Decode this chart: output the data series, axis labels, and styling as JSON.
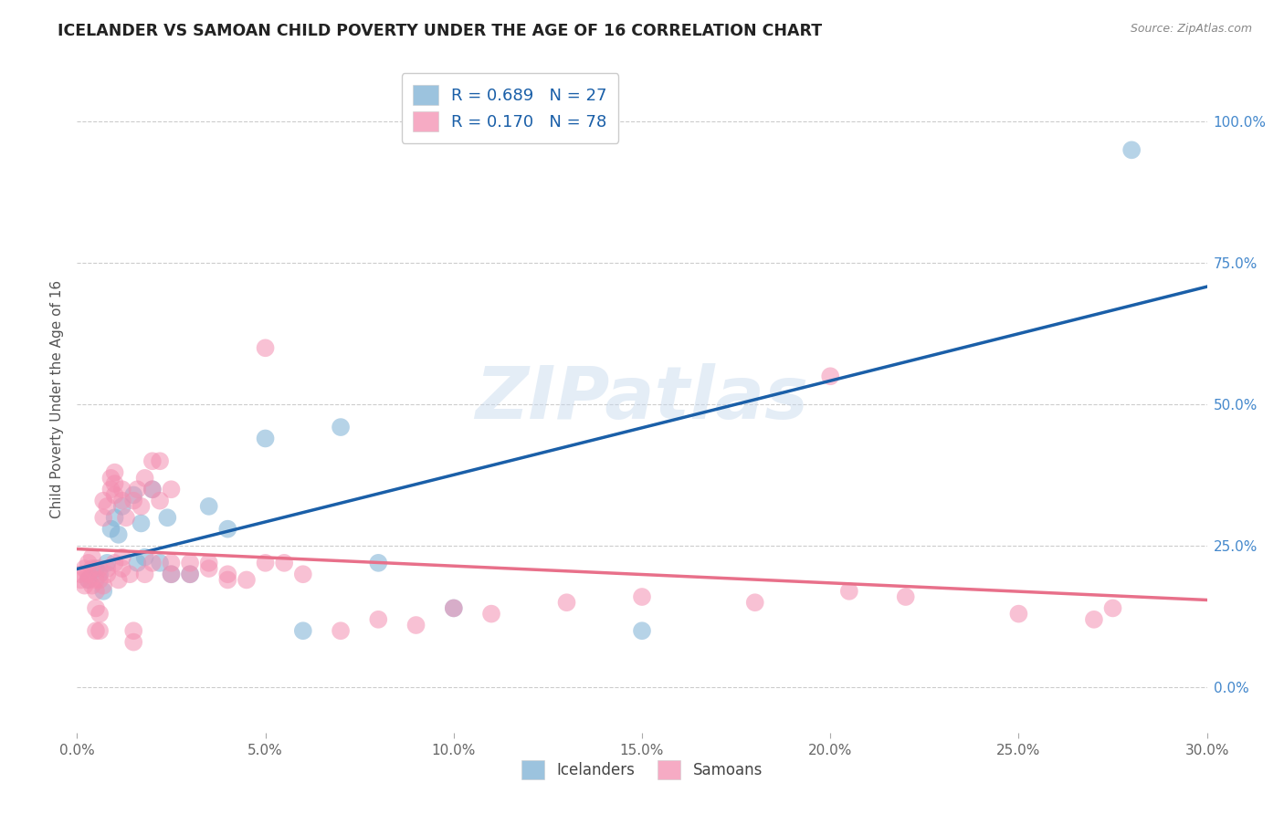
{
  "title": "ICELANDER VS SAMOAN CHILD POVERTY UNDER THE AGE OF 16 CORRELATION CHART",
  "source": "Source: ZipAtlas.com",
  "ylabel": "Child Poverty Under the Age of 16",
  "right_yticks": [
    "0.0%",
    "25.0%",
    "50.0%",
    "75.0%",
    "100.0%"
  ],
  "right_ytick_vals": [
    0.0,
    25.0,
    50.0,
    75.0,
    100.0
  ],
  "watermark": "ZIPatlas",
  "legend_label_icelanders": "Icelanders",
  "legend_label_samoans": "Samoans",
  "icelander_color": "#7bafd4",
  "samoan_color": "#f48fb1",
  "icelander_line_color": "#1a5fa8",
  "samoan_line_color": "#e8708a",
  "icelander_points": [
    [
      0.3,
      19.0
    ],
    [
      0.5,
      21.0
    ],
    [
      0.6,
      20.0
    ],
    [
      0.7,
      17.0
    ],
    [
      0.8,
      22.0
    ],
    [
      0.9,
      28.0
    ],
    [
      1.0,
      30.0
    ],
    [
      1.1,
      27.0
    ],
    [
      1.2,
      32.0
    ],
    [
      1.5,
      34.0
    ],
    [
      1.6,
      22.0
    ],
    [
      1.7,
      29.0
    ],
    [
      1.8,
      23.0
    ],
    [
      2.0,
      35.0
    ],
    [
      2.2,
      22.0
    ],
    [
      2.4,
      30.0
    ],
    [
      2.5,
      20.0
    ],
    [
      3.0,
      20.0
    ],
    [
      3.5,
      32.0
    ],
    [
      4.0,
      28.0
    ],
    [
      5.0,
      44.0
    ],
    [
      6.0,
      10.0
    ],
    [
      7.0,
      46.0
    ],
    [
      8.0,
      22.0
    ],
    [
      10.0,
      14.0
    ],
    [
      15.0,
      10.0
    ],
    [
      28.0,
      95.0
    ]
  ],
  "samoan_points": [
    [
      0.1,
      20.0
    ],
    [
      0.1,
      19.0
    ],
    [
      0.2,
      21.0
    ],
    [
      0.2,
      18.0
    ],
    [
      0.3,
      20.0
    ],
    [
      0.3,
      22.0
    ],
    [
      0.3,
      19.0
    ],
    [
      0.4,
      21.0
    ],
    [
      0.4,
      18.0
    ],
    [
      0.4,
      23.0
    ],
    [
      0.5,
      19.0
    ],
    [
      0.5,
      17.0
    ],
    [
      0.5,
      14.0
    ],
    [
      0.5,
      10.0
    ],
    [
      0.6,
      19.0
    ],
    [
      0.6,
      21.0
    ],
    [
      0.6,
      13.0
    ],
    [
      0.6,
      10.0
    ],
    [
      0.7,
      18.0
    ],
    [
      0.7,
      30.0
    ],
    [
      0.7,
      33.0
    ],
    [
      0.8,
      20.0
    ],
    [
      0.8,
      21.0
    ],
    [
      0.8,
      32.0
    ],
    [
      0.9,
      35.0
    ],
    [
      0.9,
      37.0
    ],
    [
      1.0,
      22.0
    ],
    [
      1.0,
      36.0
    ],
    [
      1.0,
      38.0
    ],
    [
      1.0,
      34.0
    ],
    [
      1.1,
      19.0
    ],
    [
      1.2,
      33.0
    ],
    [
      1.2,
      35.0
    ],
    [
      1.2,
      21.0
    ],
    [
      1.2,
      23.0
    ],
    [
      1.3,
      30.0
    ],
    [
      1.4,
      20.0
    ],
    [
      1.5,
      33.0
    ],
    [
      1.5,
      10.0
    ],
    [
      1.5,
      8.0
    ],
    [
      1.6,
      35.0
    ],
    [
      1.7,
      32.0
    ],
    [
      1.8,
      37.0
    ],
    [
      1.8,
      20.0
    ],
    [
      2.0,
      40.0
    ],
    [
      2.0,
      35.0
    ],
    [
      2.0,
      22.0
    ],
    [
      2.2,
      33.0
    ],
    [
      2.2,
      40.0
    ],
    [
      2.5,
      20.0
    ],
    [
      2.5,
      22.0
    ],
    [
      2.5,
      35.0
    ],
    [
      3.0,
      22.0
    ],
    [
      3.0,
      20.0
    ],
    [
      3.5,
      22.0
    ],
    [
      3.5,
      21.0
    ],
    [
      4.0,
      19.0
    ],
    [
      4.0,
      20.0
    ],
    [
      4.5,
      19.0
    ],
    [
      5.0,
      22.0
    ],
    [
      5.0,
      60.0
    ],
    [
      5.5,
      22.0
    ],
    [
      6.0,
      20.0
    ],
    [
      7.0,
      10.0
    ],
    [
      8.0,
      12.0
    ],
    [
      9.0,
      11.0
    ],
    [
      10.0,
      14.0
    ],
    [
      11.0,
      13.0
    ],
    [
      13.0,
      15.0
    ],
    [
      15.0,
      16.0
    ],
    [
      18.0,
      15.0
    ],
    [
      20.0,
      55.0
    ],
    [
      20.5,
      17.0
    ],
    [
      22.0,
      16.0
    ],
    [
      25.0,
      13.0
    ],
    [
      27.0,
      12.0
    ],
    [
      27.5,
      14.0
    ]
  ],
  "xlim": [
    0.0,
    30.0
  ],
  "ylim": [
    -8.0,
    110.0
  ],
  "background_color": "#ffffff",
  "grid_color": "#cccccc",
  "xtick_positions": [
    0.0,
    5.0,
    10.0,
    15.0,
    20.0,
    25.0,
    30.0
  ],
  "xtick_labels": [
    "0.0%",
    "5.0%",
    "10.0%",
    "15.0%",
    "20.0%",
    "25.0%",
    "30.0%"
  ]
}
